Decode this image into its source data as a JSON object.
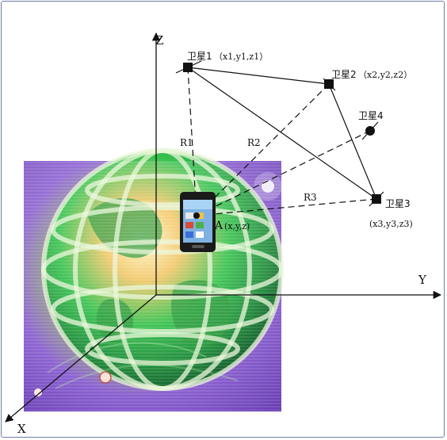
{
  "axes": {
    "x": "X",
    "y": "Y",
    "z": "Z"
  },
  "satellites": [
    {
      "name": "卫星1",
      "coord": "（x1,y1,z1）"
    },
    {
      "name": "卫星2",
      "coord": "（x2,y2,z2）"
    },
    {
      "name": "卫星3",
      "coord": "(x3,y3,z3)"
    },
    {
      "name": "卫星4",
      "coord": ""
    }
  ],
  "ranges": [
    "R1",
    "R2",
    "R3"
  ],
  "receiver": {
    "label": "A",
    "coord": "(x,y,z)"
  },
  "colors": {
    "line": "#111111",
    "frame": "#6f7fa6",
    "globe_green": "#2fbf4a",
    "globe_purple": "#9a63d8",
    "globe_gold": "#f2c86a"
  },
  "icons": [
    "globe-image",
    "smartphone-icon",
    "satellite-marker"
  ]
}
